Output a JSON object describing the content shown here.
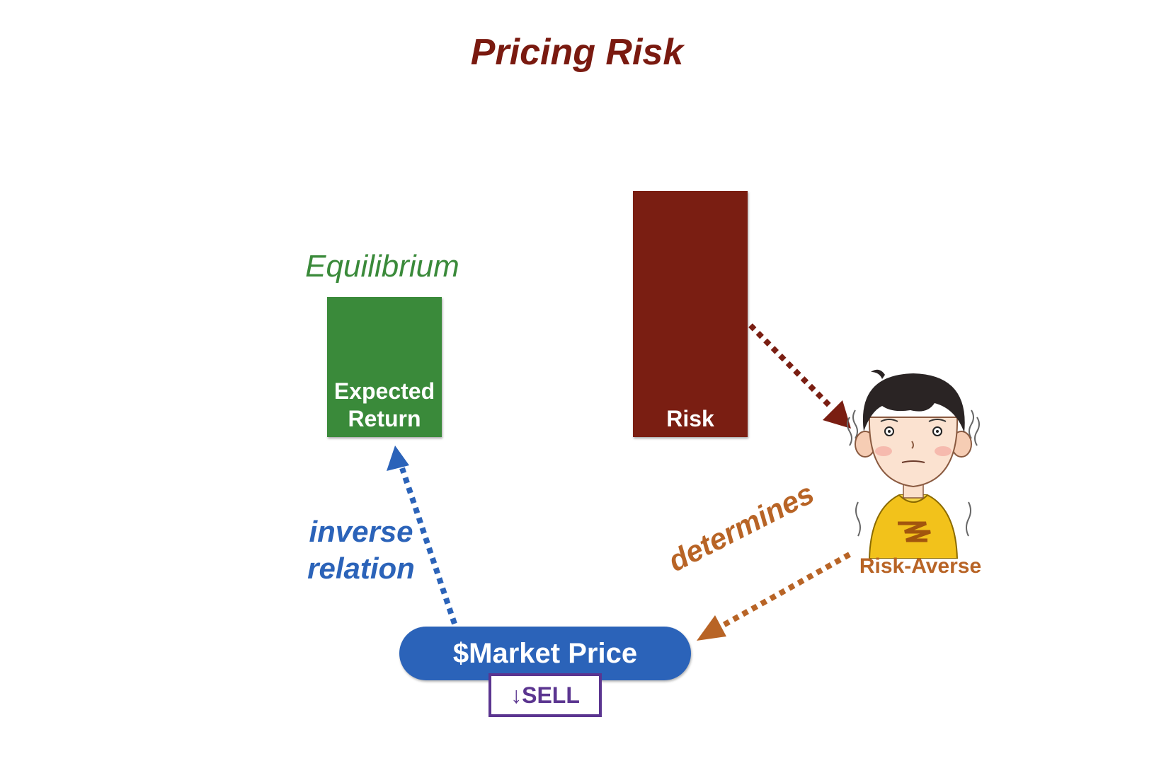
{
  "title": "Pricing Risk",
  "equilibrium_label": "Equilibrium",
  "expected_return_box": {
    "line1": "Expected",
    "line2": "Return"
  },
  "risk_box": {
    "label": "Risk"
  },
  "market_price": {
    "label": "$Market Price"
  },
  "sell_box": {
    "label": "↓SELL"
  },
  "inverse_relation": {
    "line1": "inverse",
    "line2": "relation"
  },
  "determines_label": "determines",
  "risk_averse_label": "Risk-Averse",
  "colors": {
    "title": "#7a1a10",
    "green": "#3a8a3a",
    "risk": "#7a1e12",
    "blue": "#2b63b9",
    "orange": "#b86426",
    "purple": "#5b3590"
  },
  "icons": {
    "person": "risk-averse-person-illustration"
  }
}
